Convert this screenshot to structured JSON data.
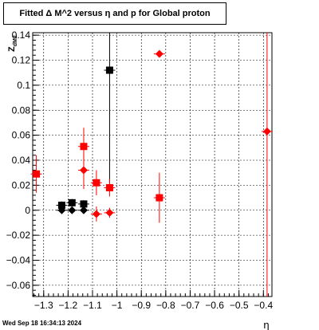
{
  "chart_data": {
    "type": "scatter",
    "title": "Fitted Δ M^2 versus η and p for Global proton",
    "xlabel": "η",
    "ylabel": "Z_{dM2}",
    "xlim": [
      -1.345,
      -1.5
    ],
    "ylim": [
      -0.069,
      0.142
    ],
    "xaxis_range": [
      -1.345,
      -0.365
    ],
    "grid": true,
    "x_ticks": [
      "−1.3",
      "−1.2",
      "−1.1",
      "−1",
      "−0.9",
      "−0.8",
      "−0.7",
      "−0.6",
      "−0.5",
      "−0.4"
    ],
    "x_tick_values": [
      -1.3,
      -1.2,
      -1.1,
      -1.0,
      -0.9,
      -0.8,
      -0.7,
      -0.6,
      -0.5,
      -0.4
    ],
    "y_ticks": [
      "−0.06",
      "−0.04",
      "−0.02",
      "0",
      "0.02",
      "0.04",
      "0.06",
      "0.08",
      "0.1",
      "0.12",
      "0.14"
    ],
    "y_tick_values": [
      -0.06,
      -0.04,
      -0.02,
      0,
      0.02,
      0.04,
      0.06,
      0.08,
      0.1,
      0.12,
      0.14
    ],
    "series": [
      {
        "marker": "square",
        "color": "#000000",
        "points": [
          {
            "x": -1.226,
            "y": 0.004,
            "elo": 0.003,
            "ehi": 0.003
          },
          {
            "x": -1.184,
            "y": 0.006,
            "elo": 0.003,
            "ehi": 0.003
          },
          {
            "x": -1.136,
            "y": 0.005,
            "elo": 0.003,
            "ehi": 0.003
          },
          {
            "x": -1.03,
            "y": 0.112,
            "elo": 0.09,
            "ehi": 0.03
          }
        ]
      },
      {
        "marker": "diamond",
        "color": "#000000",
        "points": [
          {
            "x": -1.226,
            "y": 0.0,
            "elo": 0.001,
            "ehi": 0.001
          },
          {
            "x": -1.184,
            "y": 0.0,
            "elo": 0.001,
            "ehi": 0.001
          },
          {
            "x": -1.136,
            "y": 0.0,
            "elo": 0.001,
            "ehi": 0.001
          }
        ]
      },
      {
        "marker": "square",
        "color": "#ff0000",
        "points": [
          {
            "x": -1.33,
            "y": 0.029,
            "elo": 0.015,
            "ehi": 0.015
          },
          {
            "x": -1.136,
            "y": 0.051,
            "elo": 0.015,
            "ehi": 0.015
          },
          {
            "x": -1.084,
            "y": 0.022,
            "elo": 0.01,
            "ehi": 0.01
          },
          {
            "x": -1.03,
            "y": 0.018,
            "elo": 0.007,
            "ehi": 0.007
          },
          {
            "x": -0.826,
            "y": 0.01,
            "elo": 0.02,
            "ehi": 0.02
          }
        ]
      },
      {
        "marker": "diamond",
        "color": "#ff0000",
        "points": [
          {
            "x": -1.136,
            "y": 0.032,
            "elo": 0.015,
            "ehi": 0.015
          },
          {
            "x": -1.084,
            "y": -0.003,
            "elo": 0.006,
            "ehi": 0.006
          },
          {
            "x": -1.03,
            "y": -0.002,
            "elo": 0.004,
            "ehi": 0.004
          },
          {
            "x": -0.826,
            "y": 0.125,
            "elo": 0.0,
            "ehi": 0.0
          },
          {
            "x": -0.385,
            "y": 0.063,
            "elo": 0.14,
            "ehi": 0.08
          }
        ]
      }
    ]
  },
  "footer_text": "Wed Sep 18 16:34:13 2024"
}
